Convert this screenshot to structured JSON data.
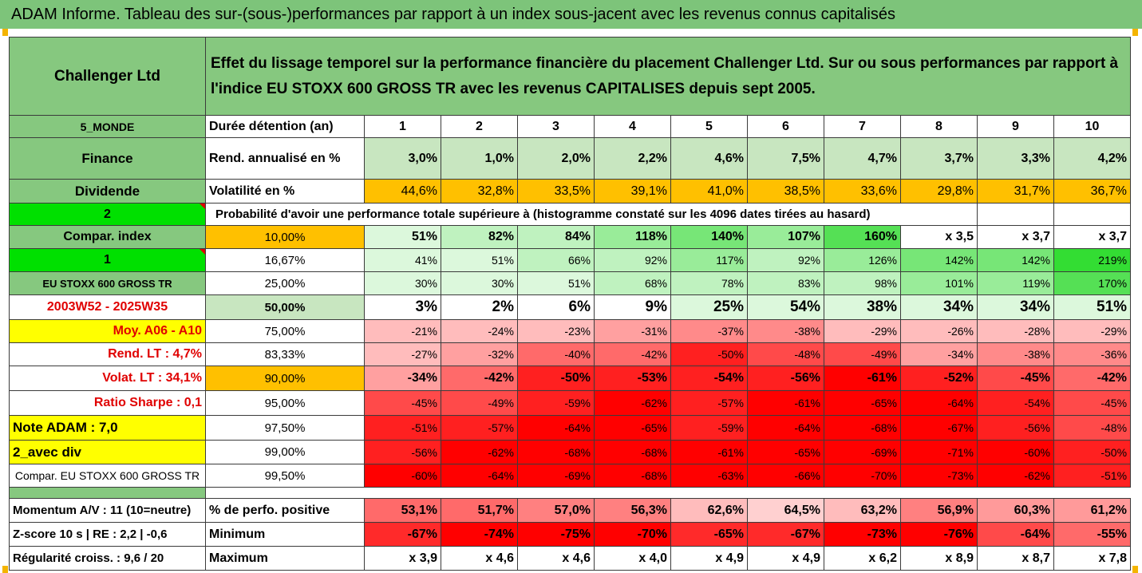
{
  "title": "ADAM Informe. Tableau des sur-(sous-)performances par rapport à un index sous-jacent avec les revenus connus capitalisés",
  "company": "Challenger Ltd",
  "description": "Effet du lissage temporel sur la performance financière du placement Challenger Ltd. Sur ou sous performances par rapport à l'indice EU STOXX 600 GROSS TR avec les revenus CAPITALISES depuis sept 2005.",
  "left_labels": {
    "region": "5_MONDE",
    "sector": "Finance",
    "dividend": "Dividende",
    "code": "2",
    "compar_index": "Compar. index",
    "one": "1",
    "index_name": "EU STOXX 600 GROSS TR",
    "period": "2003W52 - 2025W35",
    "moy": "Moy. A06 - A10",
    "rend_lt": "Rend. LT :   4,7%",
    "volat_lt": "Volat. LT :   34,1%",
    "sharpe": "Ratio Sharpe :   0,1",
    "note": "Note ADAM : 7,0",
    "avec_div": "2_avec div",
    "compar_index2": "Compar. EU STOXX 600 GROSS TR",
    "momentum": "Momentum A/V : 11 (10=neutre)",
    "zscore": "Z-score 10 s  |  RE : 2,2  |  -0,6",
    "regularite": "Régularité croiss. : 9,6 / 20"
  },
  "header": {
    "duration_label": "Durée détention (an)",
    "years": [
      "1",
      "2",
      "3",
      "4",
      "5",
      "6",
      "7",
      "8",
      "9",
      "10"
    ]
  },
  "rend": {
    "label": "Rend. annualisé en %",
    "values": [
      "3,0%",
      "1,0%",
      "2,0%",
      "2,2%",
      "4,6%",
      "7,5%",
      "4,7%",
      "3,7%",
      "3,3%",
      "4,2%"
    ]
  },
  "vol": {
    "label": "Volatilité en %",
    "values": [
      "44,6%",
      "32,8%",
      "33,5%",
      "39,1%",
      "41,0%",
      "38,5%",
      "33,6%",
      "29,8%",
      "31,7%",
      "36,7%"
    ]
  },
  "prob_label": "Probabilité d'avoir une performance totale supérieure à (histogramme constaté sur les 4096 dates tirées au hasard)",
  "quantiles": [
    {
      "p": "10,00%",
      "values": [
        "51%",
        "82%",
        "84%",
        "118%",
        "140%",
        "107%",
        "160%",
        "x 3,5",
        "x 3,7",
        "x 3,7"
      ]
    },
    {
      "p": "16,67%",
      "values": [
        "41%",
        "51%",
        "66%",
        "92%",
        "117%",
        "92%",
        "126%",
        "142%",
        "142%",
        "219%"
      ]
    },
    {
      "p": "25,00%",
      "values": [
        "30%",
        "30%",
        "51%",
        "68%",
        "78%",
        "83%",
        "98%",
        "101%",
        "119%",
        "170%"
      ]
    },
    {
      "p": "50,00%",
      "values": [
        "3%",
        "2%",
        "6%",
        "9%",
        "25%",
        "54%",
        "38%",
        "34%",
        "34%",
        "51%"
      ]
    },
    {
      "p": "75,00%",
      "values": [
        "-21%",
        "-24%",
        "-23%",
        "-31%",
        "-37%",
        "-38%",
        "-29%",
        "-26%",
        "-28%",
        "-29%"
      ]
    },
    {
      "p": "83,33%",
      "values": [
        "-27%",
        "-32%",
        "-40%",
        "-42%",
        "-50%",
        "-48%",
        "-49%",
        "-34%",
        "-38%",
        "-36%"
      ]
    },
    {
      "p": "90,00%",
      "values": [
        "-34%",
        "-42%",
        "-50%",
        "-53%",
        "-54%",
        "-56%",
        "-61%",
        "-52%",
        "-45%",
        "-42%"
      ]
    },
    {
      "p": "95,00%",
      "values": [
        "-45%",
        "-49%",
        "-59%",
        "-62%",
        "-57%",
        "-61%",
        "-65%",
        "-64%",
        "-54%",
        "-45%"
      ]
    },
    {
      "p": "97,50%",
      "values": [
        "-51%",
        "-57%",
        "-64%",
        "-65%",
        "-59%",
        "-64%",
        "-68%",
        "-67%",
        "-56%",
        "-48%"
      ]
    },
    {
      "p": "99,00%",
      "values": [
        "-56%",
        "-62%",
        "-68%",
        "-68%",
        "-61%",
        "-65%",
        "-69%",
        "-71%",
        "-60%",
        "-50%"
      ]
    },
    {
      "p": "99,50%",
      "values": [
        "-60%",
        "-64%",
        "-69%",
        "-68%",
        "-63%",
        "-66%",
        "-70%",
        "-73%",
        "-62%",
        "-51%"
      ]
    }
  ],
  "positive": {
    "label": "% de perfo. positive",
    "values": [
      "53,1%",
      "51,7%",
      "57,0%",
      "56,3%",
      "62,6%",
      "64,5%",
      "63,2%",
      "56,9%",
      "60,3%",
      "61,2%"
    ]
  },
  "minimum": {
    "label": "Minimum",
    "values": [
      "-67%",
      "-74%",
      "-75%",
      "-70%",
      "-65%",
      "-67%",
      "-73%",
      "-76%",
      "-64%",
      "-55%"
    ]
  },
  "maximum": {
    "label": "Maximum",
    "values": [
      "x 3,9",
      "x 4,6",
      "x 4,6",
      "x 4,0",
      "x 4,9",
      "x 4,9",
      "x 6,2",
      "x 8,9",
      "x 8,7",
      "x 7,8"
    ]
  },
  "colors": {
    "title_green": "#7dc47a",
    "header_green": "#86c87f",
    "light_green": "#c8e6c0",
    "bright_green": "#00e000",
    "orange": "#ffc000",
    "yellow": "#ffff00",
    "red": "#ff0000"
  }
}
